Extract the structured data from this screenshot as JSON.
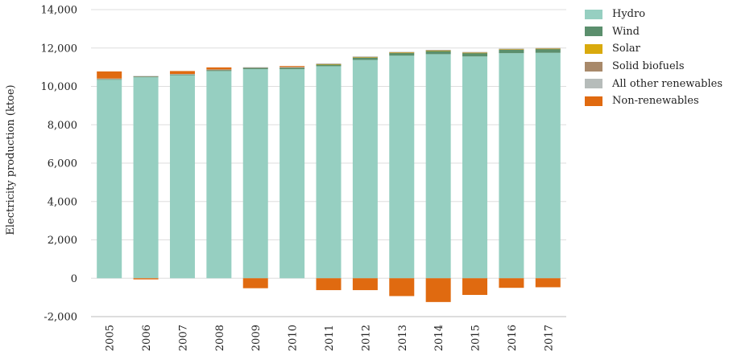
{
  "chart_data": {
    "type": "bar",
    "stacked": true,
    "title": "",
    "xlabel": "",
    "ylabel": "Electricity production (ktoe)",
    "ylim": [
      -2000,
      14000
    ],
    "yticks": [
      -2000,
      0,
      2000,
      4000,
      6000,
      8000,
      10000,
      12000,
      14000
    ],
    "ytick_labels": [
      "-2,000",
      "0",
      "2,000",
      "4,000",
      "6,000",
      "8,000",
      "10,000",
      "12,000",
      "14,000"
    ],
    "grid": true,
    "legend_position": "top-right",
    "categories": [
      "2005",
      "2006",
      "2007",
      "2008",
      "2009",
      "2010",
      "2011",
      "2012",
      "2013",
      "2014",
      "2015",
      "2016",
      "2017"
    ],
    "series": [
      {
        "name": "Hydro",
        "color": "#96cfc1",
        "values": [
          10350,
          10480,
          10580,
          10800,
          10900,
          10900,
          11050,
          11380,
          11600,
          11680,
          11560,
          11730,
          11750
        ]
      },
      {
        "name": "Wind",
        "color": "#5b8f6d",
        "values": [
          20,
          25,
          30,
          40,
          60,
          70,
          100,
          130,
          150,
          170,
          180,
          190,
          200
        ]
      },
      {
        "name": "Solar",
        "color": "#d9aa0d",
        "values": [
          0,
          0,
          0,
          0,
          0,
          0,
          5,
          10,
          10,
          15,
          15,
          15,
          15
        ]
      },
      {
        "name": "Solid biofuels",
        "color": "#a8896a",
        "values": [
          30,
          30,
          30,
          30,
          30,
          30,
          30,
          30,
          30,
          30,
          30,
          30,
          30
        ]
      },
      {
        "name": "All other renewables",
        "color": "#b6bcba",
        "values": [
          10,
          10,
          10,
          10,
          10,
          10,
          10,
          10,
          10,
          10,
          10,
          10,
          10
        ]
      },
      {
        "name": "Non-renewables",
        "color": "#e06a10",
        "values": [
          370,
          -60,
          150,
          110,
          -520,
          50,
          -620,
          -620,
          -930,
          -1240,
          -870,
          -500,
          -470
        ]
      }
    ]
  }
}
